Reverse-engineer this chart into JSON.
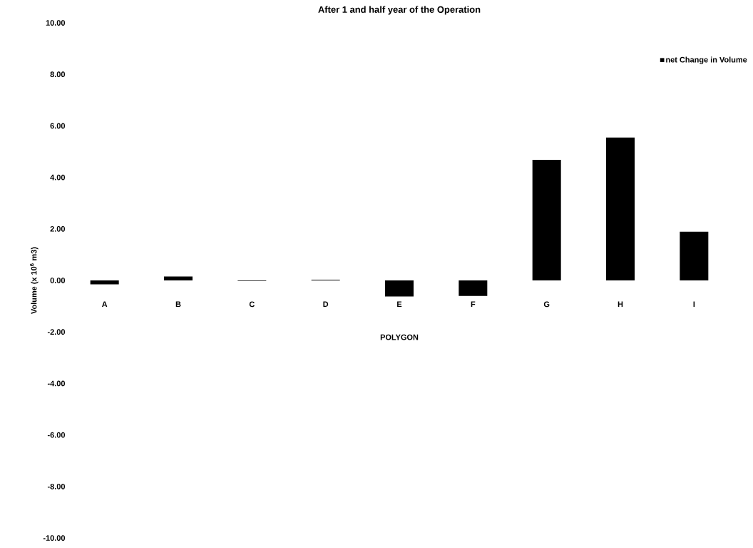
{
  "chart_data": {
    "type": "bar",
    "title": "After 1 and half year of the Operation",
    "xlabel": "POLYGON",
    "ylabel": "Volume (x 10$^{6}$ m3)",
    "categories": [
      "A",
      "B",
      "C",
      "D",
      "E",
      "F",
      "G",
      "H",
      "I"
    ],
    "series": [
      {
        "name": "net Change in Volume",
        "color": "#000000",
        "values": [
          -0.15,
          0.15,
          -0.02,
          0.03,
          -0.62,
          -0.6,
          4.68,
          5.55,
          1.89
        ]
      }
    ],
    "ylim": [
      -10,
      10
    ],
    "yticks": [
      {
        "value": -10,
        "label": "-10.00"
      },
      {
        "value": -8,
        "label": "-8.00"
      },
      {
        "value": -6,
        "label": "-6.00"
      },
      {
        "value": -4,
        "label": "-4.00"
      },
      {
        "value": -2,
        "label": "-2.00"
      },
      {
        "value": 0,
        "label": "0.00"
      },
      {
        "value": 2,
        "label": "2.00"
      },
      {
        "value": 4,
        "label": "4.00"
      },
      {
        "value": 6,
        "label": "6.00"
      },
      {
        "value": 8,
        "label": "8.00"
      },
      {
        "value": 10,
        "label": "10.00"
      }
    ],
    "legend": "top right",
    "grid": false
  }
}
